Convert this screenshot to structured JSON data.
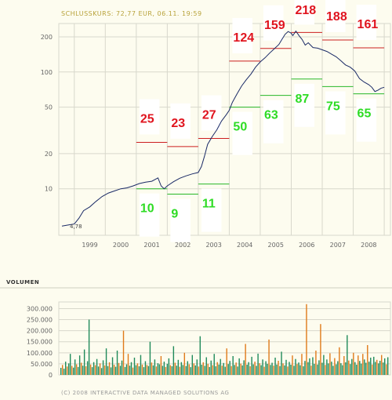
{
  "header": {
    "title": "SCHLUSSKURS: 72,77 EUR, 06.11. 19:59"
  },
  "colors": {
    "price_line": "#1a2a66",
    "high_line": "#cc1f1f",
    "low_line": "#28b828",
    "vol_green": "#1f8a5a",
    "vol_orange": "#e07a1a",
    "grid": "#d8d8cc",
    "background": "#fdfcef"
  },
  "chart_data": [
    {
      "type": "line",
      "title": "SCHLUSSKURS: 72,77 EUR, 06.11. 19:59",
      "y_scale": "log",
      "ylim": [
        4,
        260
      ],
      "y_ticks": [
        {
          "value": 200,
          "label": "200"
        },
        {
          "value": 100,
          "label": "100"
        },
        {
          "value": 50,
          "label": "50"
        },
        {
          "value": 20,
          "label": "20"
        },
        {
          "value": 10,
          "label": "10"
        }
      ],
      "xlim": [
        1998.5,
        2009.2
      ],
      "x_ticks": [
        "1999",
        "2000",
        "2001",
        "2002",
        "2003",
        "2004",
        "2005",
        "2006",
        "2007",
        "2008"
      ],
      "start_label": "4,78",
      "series": [
        {
          "values": [
            [
              1998.6,
              4.8
            ],
            [
              1998.8,
              4.9
            ],
            [
              1999.0,
              5.0
            ],
            [
              1999.15,
              5.6
            ],
            [
              1999.3,
              6.5
            ],
            [
              1999.5,
              7.0
            ],
            [
              1999.7,
              7.8
            ],
            [
              1999.9,
              8.6
            ],
            [
              2000.1,
              9.2
            ],
            [
              2000.3,
              9.6
            ],
            [
              2000.5,
              10.0
            ],
            [
              2000.7,
              10.2
            ],
            [
              2000.9,
              10.6
            ],
            [
              2001.1,
              11.1
            ],
            [
              2001.3,
              11.4
            ],
            [
              2001.5,
              11.6
            ],
            [
              2001.7,
              12.4
            ],
            [
              2001.8,
              10.6
            ],
            [
              2001.9,
              10.0
            ],
            [
              2002.0,
              10.6
            ],
            [
              2002.2,
              11.5
            ],
            [
              2002.4,
              12.3
            ],
            [
              2002.6,
              12.9
            ],
            [
              2002.8,
              13.4
            ],
            [
              2003.0,
              13.8
            ],
            [
              2003.1,
              15.5
            ],
            [
              2003.2,
              19.0
            ],
            [
              2003.3,
              24.0
            ],
            [
              2003.45,
              28.0
            ],
            [
              2003.6,
              32.0
            ],
            [
              2003.75,
              38.0
            ],
            [
              2003.9,
              43.0
            ],
            [
              2004.0,
              47.0
            ],
            [
              2004.1,
              55.0
            ],
            [
              2004.25,
              65.0
            ],
            [
              2004.4,
              76.0
            ],
            [
              2004.55,
              86.0
            ],
            [
              2004.7,
              96.0
            ],
            [
              2004.85,
              110.0
            ],
            [
              2005.0,
              122.0
            ],
            [
              2005.15,
              132.0
            ],
            [
              2005.3,
              145.0
            ],
            [
              2005.45,
              158.0
            ],
            [
              2005.6,
              172.0
            ],
            [
              2005.7,
              190.0
            ],
            [
              2005.8,
              210.0
            ],
            [
              2005.9,
              222.0
            ],
            [
              2006.0,
              215.0
            ],
            [
              2006.05,
              205.0
            ],
            [
              2006.15,
              224.0
            ],
            [
              2006.25,
              205.0
            ],
            [
              2006.35,
              190.0
            ],
            [
              2006.45,
              170.0
            ],
            [
              2006.55,
              178.0
            ],
            [
              2006.7,
              162.0
            ],
            [
              2006.85,
              160.0
            ],
            [
              2007.0,
              155.0
            ],
            [
              2007.15,
              150.0
            ],
            [
              2007.3,
              142.0
            ],
            [
              2007.45,
              135.0
            ],
            [
              2007.6,
              125.0
            ],
            [
              2007.75,
              115.0
            ],
            [
              2007.9,
              110.0
            ],
            [
              2008.05,
              102.0
            ],
            [
              2008.2,
              88.0
            ],
            [
              2008.35,
              82.0
            ],
            [
              2008.5,
              78.0
            ],
            [
              2008.6,
              74.0
            ],
            [
              2008.7,
              68.0
            ],
            [
              2008.8,
              70.0
            ],
            [
              2008.9,
              72.77
            ],
            [
              2009.0,
              74.0
            ]
          ]
        }
      ],
      "annual_ranges": [
        {
          "year": "2001",
          "high": 25,
          "low": 10
        },
        {
          "year": "2002",
          "high": 23,
          "low": 9
        },
        {
          "year": "2003",
          "high": 27,
          "low": 11
        },
        {
          "year": "2004",
          "high": 124,
          "low": 50
        },
        {
          "year": "2005",
          "high": 159,
          "low": 63
        },
        {
          "year": "2006",
          "high": 218,
          "low": 87
        },
        {
          "year": "2007",
          "high": 188,
          "low": 75
        },
        {
          "year": "2008",
          "high": 161,
          "low": 65
        }
      ]
    },
    {
      "type": "bar",
      "title": "VOLUMEN",
      "ylim": [
        0,
        330000
      ],
      "y_ticks": [
        {
          "value": 300000,
          "label": "300.000"
        },
        {
          "value": 250000,
          "label": "250.000"
        },
        {
          "value": 200000,
          "label": "200.000"
        },
        {
          "value": 150000,
          "label": "150.000"
        },
        {
          "value": 100000,
          "label": "100.000"
        },
        {
          "value": 50000,
          "label": "50.000"
        },
        {
          "value": 0,
          "label": "0"
        }
      ],
      "values": [
        [
          32000,
          0
        ],
        [
          45000,
          1
        ],
        [
          28000,
          0
        ],
        [
          60000,
          0
        ],
        [
          38000,
          1
        ],
        [
          52000,
          0
        ],
        [
          95000,
          0
        ],
        [
          41000,
          1
        ],
        [
          33000,
          0
        ],
        [
          70000,
          0
        ],
        [
          48000,
          1
        ],
        [
          36000,
          0
        ],
        [
          88000,
          0
        ],
        [
          55000,
          1
        ],
        [
          42000,
          0
        ],
        [
          115000,
          0
        ],
        [
          39000,
          1
        ],
        [
          62000,
          0
        ],
        [
          250000,
          0
        ],
        [
          47000,
          1
        ],
        [
          35000,
          0
        ],
        [
          58000,
          0
        ],
        [
          44000,
          1
        ],
        [
          72000,
          0
        ],
        [
          38000,
          0
        ],
        [
          52000,
          1
        ],
        [
          31000,
          0
        ],
        [
          66000,
          0
        ],
        [
          43000,
          1
        ],
        [
          120000,
          0
        ],
        [
          40000,
          0
        ],
        [
          57000,
          1
        ],
        [
          34000,
          0
        ],
        [
          80000,
          0
        ],
        [
          46000,
          1
        ],
        [
          37000,
          0
        ],
        [
          110000,
          0
        ],
        [
          54000,
          1
        ],
        [
          41000,
          0
        ],
        [
          65000,
          0
        ],
        [
          200000,
          1
        ],
        [
          36000,
          0
        ],
        [
          48000,
          0
        ],
        [
          95000,
          1
        ],
        [
          42000,
          0
        ],
        [
          58000,
          0
        ],
        [
          33000,
          1
        ],
        [
          78000,
          0
        ],
        [
          44000,
          0
        ],
        [
          52000,
          1
        ],
        [
          39000,
          0
        ],
        [
          90000,
          0
        ],
        [
          47000,
          1
        ],
        [
          35000,
          0
        ],
        [
          62000,
          0
        ],
        [
          45000,
          1
        ],
        [
          40000,
          0
        ],
        [
          150000,
          0
        ],
        [
          56000,
          1
        ],
        [
          43000,
          0
        ],
        [
          70000,
          0
        ],
        [
          38000,
          1
        ],
        [
          53000,
          0
        ],
        [
          48000,
          0
        ],
        [
          85000,
          1
        ],
        [
          41000,
          0
        ],
        [
          60000,
          0
        ],
        [
          36000,
          1
        ],
        [
          50000,
          0
        ],
        [
          75000,
          0
        ],
        [
          44000,
          1
        ],
        [
          39000,
          0
        ],
        [
          130000,
          0
        ],
        [
          55000,
          1
        ],
        [
          42000,
          0
        ],
        [
          68000,
          0
        ],
        [
          37000,
          1
        ],
        [
          58000,
          0
        ],
        [
          45000,
          0
        ],
        [
          100000,
          1
        ],
        [
          40000,
          0
        ],
        [
          62000,
          0
        ],
        [
          48000,
          1
        ],
        [
          35000,
          0
        ],
        [
          90000,
          0
        ],
        [
          52000,
          1
        ],
        [
          43000,
          0
        ],
        [
          70000,
          0
        ],
        [
          38000,
          1
        ],
        [
          175000,
          0
        ],
        [
          46000,
          0
        ],
        [
          57000,
          1
        ],
        [
          41000,
          0
        ],
        [
          80000,
          0
        ],
        [
          50000,
          1
        ],
        [
          36000,
          0
        ],
        [
          65000,
          0
        ],
        [
          44000,
          1
        ],
        [
          95000,
          0
        ],
        [
          39000,
          0
        ],
        [
          58000,
          1
        ],
        [
          47000,
          0
        ],
        [
          72000,
          0
        ],
        [
          42000,
          1
        ],
        [
          54000,
          0
        ],
        [
          37000,
          0
        ],
        [
          120000,
          1
        ],
        [
          49000,
          0
        ],
        [
          63000,
          0
        ],
        [
          40000,
          1
        ],
        [
          85000,
          0
        ],
        [
          45000,
          0
        ],
        [
          56000,
          1
        ],
        [
          38000,
          0
        ],
        [
          75000,
          0
        ],
        [
          51000,
          1
        ],
        [
          43000,
          0
        ],
        [
          66000,
          0
        ],
        [
          140000,
          1
        ],
        [
          46000,
          0
        ],
        [
          58000,
          0
        ],
        [
          39000,
          1
        ],
        [
          82000,
          0
        ],
        [
          48000,
          0
        ],
        [
          60000,
          1
        ],
        [
          41000,
          0
        ],
        [
          96000,
          0
        ],
        [
          53000,
          1
        ],
        [
          44000,
          0
        ],
        [
          70000,
          0
        ],
        [
          37000,
          1
        ],
        [
          62000,
          0
        ],
        [
          50000,
          0
        ],
        [
          160000,
          1
        ],
        [
          45000,
          0
        ],
        [
          55000,
          0
        ],
        [
          42000,
          1
        ],
        [
          78000,
          0
        ],
        [
          47000,
          0
        ],
        [
          64000,
          1
        ],
        [
          40000,
          0
        ],
        [
          105000,
          0
        ],
        [
          52000,
          1
        ],
        [
          43000,
          0
        ],
        [
          68000,
          0
        ],
        [
          38000,
          1
        ],
        [
          59000,
          0
        ],
        [
          46000,
          0
        ],
        [
          88000,
          1
        ],
        [
          41000,
          0
        ],
        [
          72000,
          0
        ],
        [
          49000,
          1
        ],
        [
          56000,
          0
        ],
        [
          44000,
          0
        ],
        [
          95000,
          1
        ],
        [
          39000,
          0
        ],
        [
          63000,
          0
        ],
        [
          320000,
          1
        ],
        [
          58000,
          0
        ],
        [
          75000,
          0
        ],
        [
          42000,
          1
        ],
        [
          80000,
          0
        ],
        [
          50000,
          0
        ],
        [
          110000,
          1
        ],
        [
          47000,
          0
        ],
        [
          66000,
          0
        ],
        [
          230000,
          1
        ],
        [
          55000,
          0
        ],
        [
          90000,
          0
        ],
        [
          45000,
          1
        ],
        [
          70000,
          0
        ],
        [
          52000,
          0
        ],
        [
          98000,
          1
        ],
        [
          60000,
          0
        ],
        [
          41000,
          0
        ],
        [
          76000,
          1
        ],
        [
          48000,
          0
        ],
        [
          62000,
          0
        ],
        [
          125000,
          1
        ],
        [
          53000,
          0
        ],
        [
          44000,
          0
        ],
        [
          85000,
          1
        ],
        [
          57000,
          0
        ],
        [
          180000,
          0
        ],
        [
          65000,
          1
        ],
        [
          49000,
          0
        ],
        [
          72000,
          0
        ],
        [
          100000,
          1
        ],
        [
          58000,
          0
        ],
        [
          46000,
          0
        ],
        [
          88000,
          1
        ],
        [
          63000,
          0
        ],
        [
          51000,
          0
        ],
        [
          95000,
          1
        ],
        [
          70000,
          0
        ],
        [
          55000,
          0
        ],
        [
          135000,
          1
        ],
        [
          60000,
          0
        ],
        [
          78000,
          0
        ],
        [
          47000,
          1
        ],
        [
          82000,
          0
        ],
        [
          59000,
          0
        ],
        [
          68000,
          1
        ],
        [
          52000,
          0
        ],
        [
          64000,
          0
        ],
        [
          90000,
          1
        ],
        [
          56000,
          0
        ],
        [
          75000,
          0
        ],
        [
          48000,
          1
        ],
        [
          80000,
          0
        ]
      ]
    }
  ],
  "volume": {
    "title": "VOLUMEN"
  },
  "footer": {
    "copyright": "(C) 2008 INTERACTIVE DATA MANAGED SOLUTIONS AG"
  }
}
